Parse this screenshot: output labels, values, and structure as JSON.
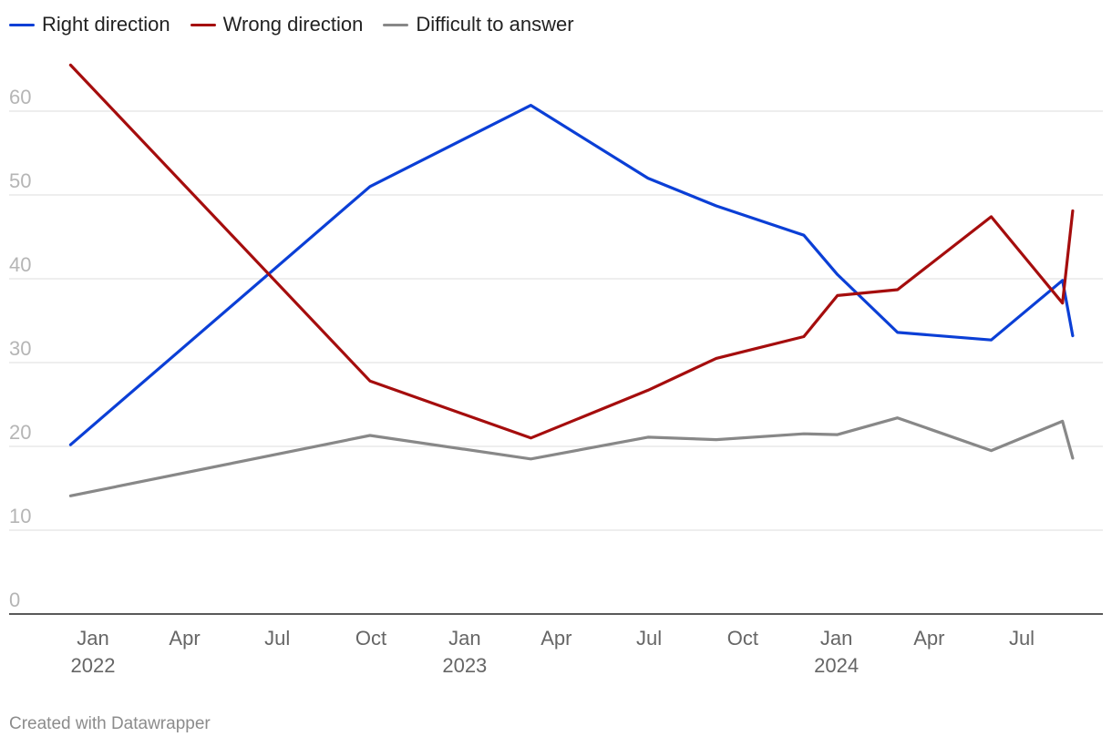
{
  "legend": [
    {
      "label": "Right direction",
      "color": "#0b3fd6"
    },
    {
      "label": "Wrong direction",
      "color": "#a50d0d"
    },
    {
      "label": "Difficult to answer",
      "color": "#888888"
    }
  ],
  "credit": "Created with Datawrapper",
  "chart_data": {
    "type": "line",
    "title": "",
    "xlabel": "",
    "ylabel": "",
    "ylim": [
      0,
      65
    ],
    "y_ticks": [
      0,
      10,
      20,
      30,
      40,
      50,
      60
    ],
    "grid": true,
    "legend_position": "top-left",
    "x_ticks": [
      {
        "date": "2022-01-01",
        "label": "Jan",
        "year": "2022"
      },
      {
        "date": "2022-04-01",
        "label": "Apr",
        "year": ""
      },
      {
        "date": "2022-07-01",
        "label": "Jul",
        "year": ""
      },
      {
        "date": "2022-10-01",
        "label": "Oct",
        "year": ""
      },
      {
        "date": "2023-01-01",
        "label": "Jan",
        "year": "2023"
      },
      {
        "date": "2023-04-01",
        "label": "Apr",
        "year": ""
      },
      {
        "date": "2023-07-01",
        "label": "Jul",
        "year": ""
      },
      {
        "date": "2023-10-01",
        "label": "Oct",
        "year": ""
      },
      {
        "date": "2024-01-01",
        "label": "Jan",
        "year": "2024"
      },
      {
        "date": "2024-04-01",
        "label": "Apr",
        "year": ""
      },
      {
        "date": "2024-07-01",
        "label": "Jul",
        "year": ""
      }
    ],
    "x": [
      "2021-12-10",
      "2022-09-30",
      "2023-03-07",
      "2023-06-30",
      "2023-09-05",
      "2023-11-30",
      "2024-01-02",
      "2024-03-01",
      "2024-06-01",
      "2024-08-10",
      "2024-08-20"
    ],
    "series": [
      {
        "name": "Right direction",
        "color": "#0b3fd6",
        "values": [
          20.2,
          51.0,
          60.7,
          52.0,
          48.7,
          45.2,
          40.5,
          33.6,
          32.7,
          39.8,
          33.2
        ]
      },
      {
        "name": "Wrong direction",
        "color": "#a50d0d",
        "values": [
          65.5,
          27.8,
          21.0,
          26.7,
          30.5,
          33.1,
          38.0,
          38.7,
          47.4,
          37.1,
          48.1
        ]
      },
      {
        "name": "Difficult to answer",
        "color": "#888888",
        "values": [
          14.1,
          21.3,
          18.5,
          21.1,
          20.8,
          21.5,
          21.4,
          23.4,
          19.5,
          23.0,
          18.6
        ]
      }
    ]
  }
}
